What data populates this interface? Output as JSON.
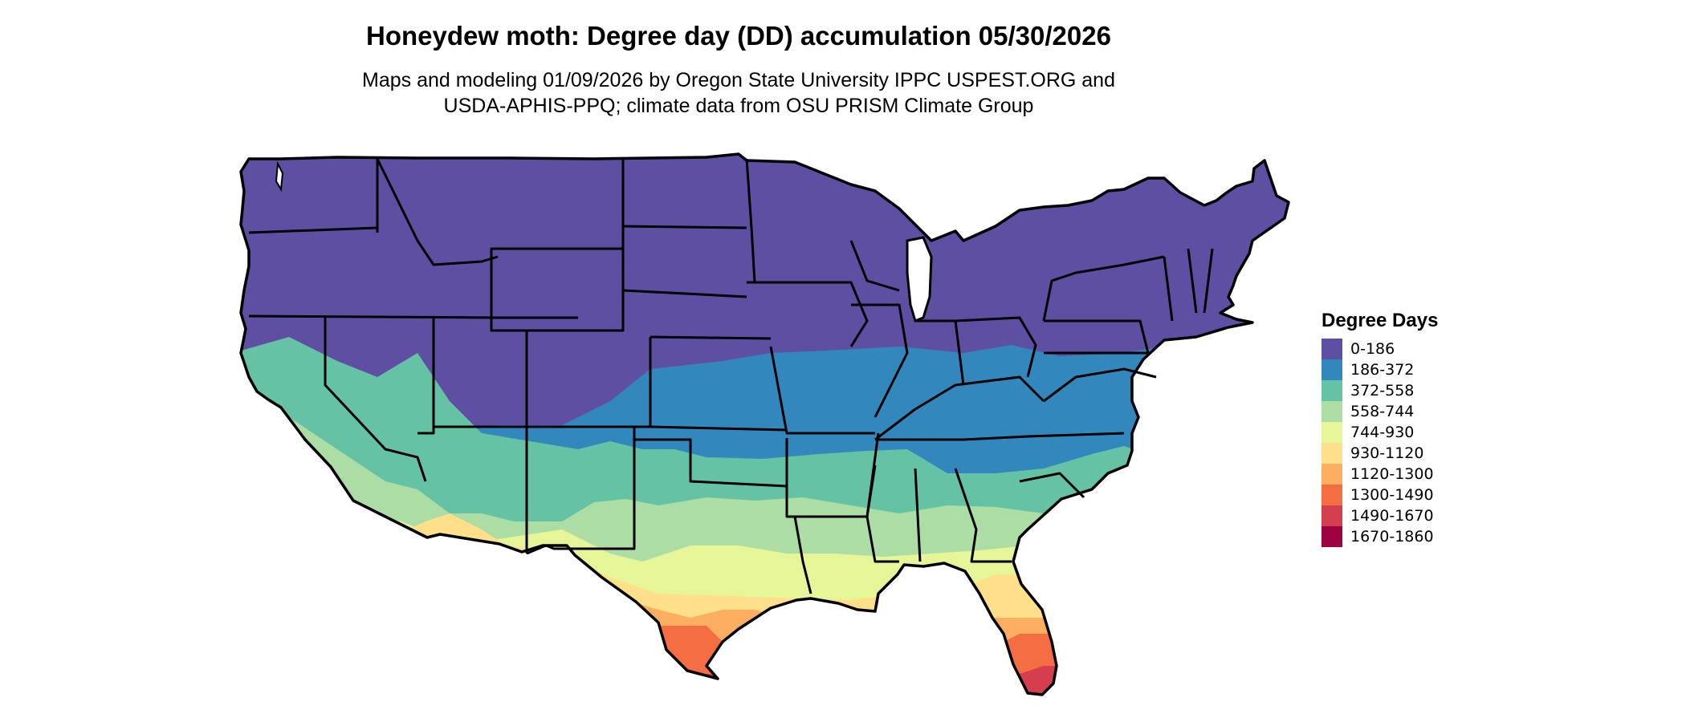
{
  "title": "Honeydew moth: Degree day (DD) accumulation 05/30/2026",
  "subtitle_line1": "Maps and modeling 01/09/2026 by Oregon State University IPPC USPEST.ORG and",
  "subtitle_line2": "USDA-APHIS-PPQ; climate data from OSU PRISM Climate Group",
  "legend": {
    "title": "Degree Days",
    "items": [
      {
        "label": "0-186",
        "color": "#5e4fa2"
      },
      {
        "label": "186-372",
        "color": "#3288bd"
      },
      {
        "label": "372-558",
        "color": "#66c2a5"
      },
      {
        "label": "558-744",
        "color": "#abdda4"
      },
      {
        "label": "744-930",
        "color": "#e6f598"
      },
      {
        "label": "930-1120",
        "color": "#fee08b"
      },
      {
        "label": "1120-1300",
        "color": "#fdae61"
      },
      {
        "label": "1300-1490",
        "color": "#f46d43"
      },
      {
        "label": "1490-1670",
        "color": "#d53e4f"
      },
      {
        "label": "1670-1860",
        "color": "#9e0142"
      }
    ]
  }
}
